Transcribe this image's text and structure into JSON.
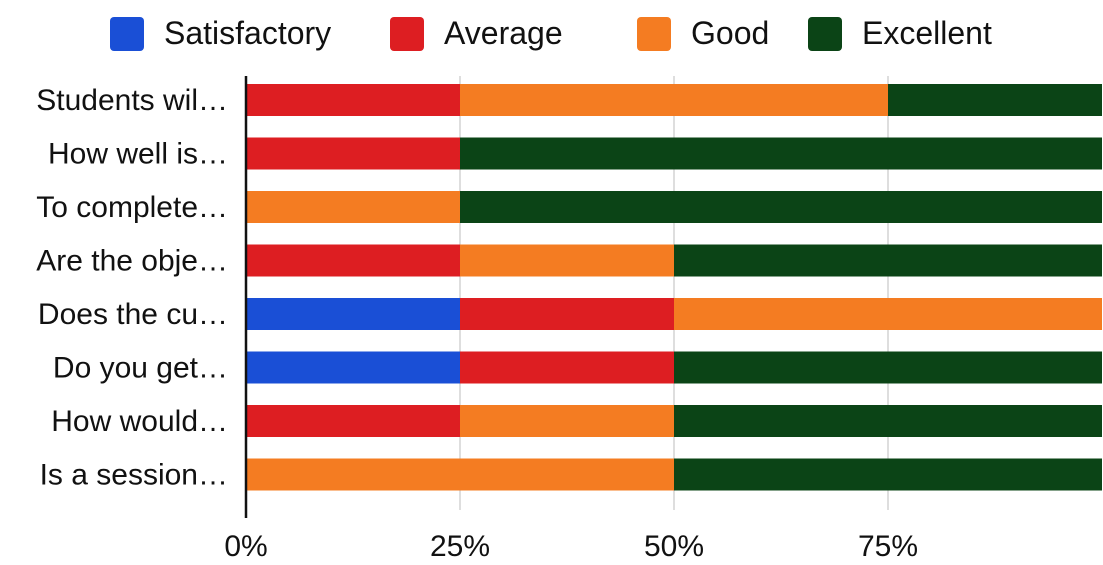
{
  "chart_data": {
    "type": "bar",
    "orientation": "horizontal",
    "stacked": "percent",
    "legend_position": "top",
    "grid": true,
    "xlim": [
      0,
      100
    ],
    "x_ticks": [
      "0%",
      "25%",
      "50%",
      "75%"
    ],
    "x_tick_values": [
      0,
      25,
      50,
      75
    ],
    "categories": [
      "Students wil…",
      "How well is…",
      "To complete…",
      "Are the obje…",
      "Does the cu…",
      "Do you get…",
      "How would…",
      "Is a session…"
    ],
    "series": [
      {
        "name": "Satisfactory",
        "color": "#1a4fd6",
        "values": [
          0,
          0,
          0,
          0,
          25,
          25,
          0,
          0
        ]
      },
      {
        "name": "Average",
        "color": "#dd1e22",
        "values": [
          25,
          25,
          0,
          25,
          25,
          25,
          25,
          0
        ]
      },
      {
        "name": "Good",
        "color": "#f47c22",
        "values": [
          50,
          0,
          25,
          25,
          50,
          0,
          25,
          50
        ]
      },
      {
        "name": "Excellent",
        "color": "#0b4416",
        "values": [
          25,
          75,
          75,
          50,
          0,
          50,
          50,
          50
        ]
      }
    ]
  }
}
